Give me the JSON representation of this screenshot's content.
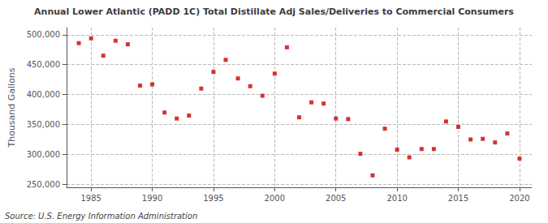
{
  "chart_data": {
    "type": "scatter",
    "title": "Annual Lower Atlantic (PADD 1C) Total Distillate Adj Sales/Deliveries to Commercial Consumers",
    "ylabel": "Thousand Gallons",
    "annotation": "Source: U.S. Energy Information Administration",
    "color": "#cc0000",
    "marker": "square",
    "grid": true,
    "x": [
      1984,
      1985,
      1986,
      1987,
      1988,
      1989,
      1990,
      1991,
      1992,
      1993,
      1994,
      1995,
      1996,
      1997,
      1998,
      1999,
      2000,
      2001,
      2002,
      2003,
      2004,
      2005,
      2006,
      2007,
      2008,
      2009,
      2010,
      2011,
      2012,
      2013,
      2014,
      2015,
      2016,
      2017,
      2018,
      2019,
      2020
    ],
    "values": [
      486000,
      494000,
      465000,
      490000,
      484000,
      415000,
      417000,
      370000,
      360000,
      365000,
      410000,
      438000,
      458000,
      427000,
      414000,
      398000,
      435000,
      479000,
      362000,
      387000,
      385000,
      360000,
      359000,
      301000,
      265000,
      343000,
      308000,
      295000,
      309000,
      309000,
      355000,
      346000,
      325000,
      326000,
      320000,
      335000,
      293000
    ],
    "xlim": [
      1983,
      2021
    ],
    "xticks": [
      1985,
      1990,
      1995,
      2000,
      2005,
      2010,
      2015,
      2020
    ],
    "ylim": [
      245000,
      512000
    ],
    "yticks": [
      {
        "value": 250000,
        "label": "250,000"
      },
      {
        "value": 300000,
        "label": "300,000"
      },
      {
        "value": 350000,
        "label": "350,000"
      },
      {
        "value": 400000,
        "label": "400,000"
      },
      {
        "value": 450000,
        "label": "450,000"
      },
      {
        "value": 500000,
        "label": "500,000"
      }
    ]
  }
}
